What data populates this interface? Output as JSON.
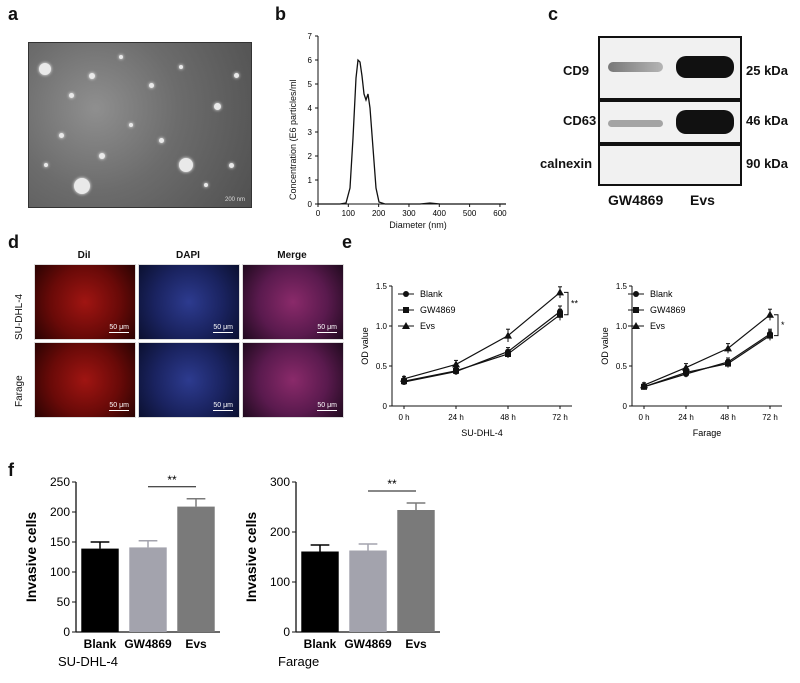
{
  "panels": {
    "a": "a",
    "b": "b",
    "c": "c",
    "d": "d",
    "e": "e",
    "f": "f"
  },
  "panel_a": {
    "scale_text": "200 nm"
  },
  "panel_b": {
    "ylabel": "Concentration (E6 particles/ml",
    "xlabel": "Diameter (nm)",
    "x_ticks": [
      "0",
      "100",
      "200",
      "300",
      "400",
      "500",
      "600"
    ],
    "y_ticks": [
      "0",
      "1",
      "2",
      "3",
      "4",
      "5",
      "6",
      "7"
    ]
  },
  "panel_c": {
    "rows": [
      {
        "name": "CD9",
        "kda": "25 kDa"
      },
      {
        "name": "CD63",
        "kda": "46 kDa"
      },
      {
        "name": "calnexin",
        "kda": "90 kDa"
      }
    ],
    "lanes": [
      "GW4869",
      "Evs"
    ]
  },
  "panel_d": {
    "columns": [
      "DiI",
      "DAPI",
      "Merge"
    ],
    "column_colors": [
      "#e02020",
      "#3040c0",
      "#111111"
    ],
    "rows": [
      "SU-DHL-4",
      "Farage"
    ],
    "scale": "50 μm"
  },
  "chart_data": [
    {
      "type": "line",
      "ylabel": "OD value",
      "xlabel": "SU-DHL-4",
      "categories": [
        "0 h",
        "24 h",
        "48 h",
        "72 h"
      ],
      "ylim": [
        0,
        1.5
      ],
      "y_ticks": [
        "0",
        "0.5",
        "1.0",
        "1.5"
      ],
      "series": [
        {
          "name": "Blank",
          "marker": "circle",
          "values": [
            0.3,
            0.43,
            0.68,
            1.18
          ],
          "err": [
            0.03,
            0.04,
            0.05,
            0.07
          ]
        },
        {
          "name": "GW4869",
          "marker": "square",
          "values": [
            0.31,
            0.44,
            0.65,
            1.14
          ],
          "err": [
            0.03,
            0.04,
            0.05,
            0.07
          ]
        },
        {
          "name": "Evs",
          "marker": "triangle",
          "values": [
            0.34,
            0.52,
            0.88,
            1.42
          ],
          "err": [
            0.03,
            0.05,
            0.08,
            0.07
          ]
        }
      ],
      "annotation": "**"
    },
    {
      "type": "line",
      "ylabel": "OD value",
      "xlabel": "Farage",
      "categories": [
        "0 h",
        "24 h",
        "48 h",
        "72 h"
      ],
      "ylim": [
        0,
        1.5
      ],
      "y_ticks": [
        "0",
        "0.5",
        "1.0",
        "1.5"
      ],
      "series": [
        {
          "name": "Blank",
          "marker": "circle",
          "values": [
            0.24,
            0.4,
            0.55,
            0.9
          ],
          "err": [
            0.03,
            0.04,
            0.05,
            0.06
          ]
        },
        {
          "name": "GW4869",
          "marker": "square",
          "values": [
            0.24,
            0.42,
            0.53,
            0.88
          ],
          "err": [
            0.03,
            0.04,
            0.05,
            0.06
          ]
        },
        {
          "name": "Evs",
          "marker": "triangle",
          "values": [
            0.26,
            0.48,
            0.72,
            1.14
          ],
          "err": [
            0.03,
            0.05,
            0.06,
            0.07
          ]
        }
      ],
      "annotation": "*"
    },
    {
      "type": "bar",
      "ylabel": "Invasive cells",
      "xlabel": "SU-DHL-4",
      "categories": [
        "Blank",
        "GW4869",
        "Evs"
      ],
      "values": [
        139,
        141,
        209
      ],
      "err": [
        11,
        11,
        13
      ],
      "ylim": [
        0,
        250
      ],
      "y_ticks": [
        "0",
        "50",
        "100",
        "150",
        "200",
        "250"
      ],
      "colors": [
        "#000000",
        "#a3a3ad",
        "#7a7a7a"
      ],
      "annotation": "**"
    },
    {
      "type": "bar",
      "ylabel": "Invasive cells",
      "xlabel": "Farage",
      "categories": [
        "Blank",
        "GW4869",
        "Evs"
      ],
      "values": [
        161,
        163,
        244
      ],
      "err": [
        13,
        13,
        14
      ],
      "ylim": [
        0,
        300
      ],
      "y_ticks": [
        "0",
        "100",
        "200",
        "300"
      ],
      "colors": [
        "#000000",
        "#a3a3ad",
        "#7a7a7a"
      ],
      "annotation": "**"
    }
  ]
}
